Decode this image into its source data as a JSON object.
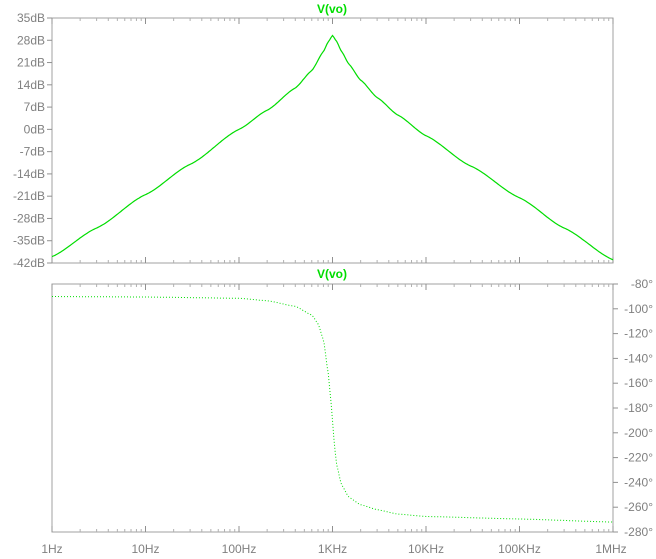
{
  "chart_data": [
    {
      "type": "line",
      "title": "V(vo)",
      "x_scale": "log",
      "xlim": [
        "1Hz",
        "1MHz"
      ],
      "x_tick_labels": [
        "1Hz",
        "10Hz",
        "100Hz",
        "1KHz",
        "10KHz",
        "100KHz",
        "1MHz"
      ],
      "y_unit": "dB",
      "ylim": [
        -42,
        35
      ],
      "y_tick_labels": [
        "35dB",
        "28dB",
        "21dB",
        "14dB",
        "7dB",
        "0dB",
        "-7dB",
        "-14dB",
        "-21dB",
        "-28dB",
        "-35dB",
        "-42dB"
      ],
      "series": [
        {
          "color": "#00dd00",
          "style": "solid",
          "x": [
            1,
            3,
            10,
            30,
            100,
            200,
            400,
            600,
            800,
            900,
            1000,
            1100,
            1250,
            1500,
            2000,
            3000,
            5000,
            10000,
            30000,
            100000,
            300000,
            1000000
          ],
          "y": [
            -40,
            -31,
            -20.5,
            -11,
            0,
            6,
            13,
            18.5,
            24.5,
            27.5,
            29.5,
            27.8,
            24.5,
            20.5,
            15.5,
            10,
            4.5,
            -2,
            -11.5,
            -21.5,
            -31,
            -41
          ]
        }
      ]
    },
    {
      "type": "line",
      "title": "V(vo)",
      "x_scale": "log",
      "xlim": [
        "1Hz",
        "1MHz"
      ],
      "x_tick_labels": [
        "1Hz",
        "10Hz",
        "100Hz",
        "1KHz",
        "10KHz",
        "100KHz",
        "1MHz"
      ],
      "y_unit": "°",
      "ylim": [
        -280,
        -80
      ],
      "y_tick_labels": [
        "-80°",
        "-100°",
        "-120°",
        "-140°",
        "-160°",
        "-180°",
        "-200°",
        "-220°",
        "-240°",
        "-260°",
        "-280°"
      ],
      "series": [
        {
          "color": "#00dd00",
          "style": "dotted",
          "x": [
            1,
            10,
            100,
            200,
            400,
            600,
            700,
            800,
            900,
            950,
            1000,
            1050,
            1100,
            1250,
            1500,
            2000,
            3000,
            5000,
            10000,
            100000,
            1000000
          ],
          "y": [
            -90.1,
            -90.5,
            -91.5,
            -93.5,
            -98,
            -105,
            -112,
            -125,
            -152,
            -170,
            -190,
            -210,
            -225,
            -242,
            -252,
            -258,
            -262,
            -265.5,
            -267.5,
            -269.5,
            -272
          ]
        }
      ]
    }
  ]
}
